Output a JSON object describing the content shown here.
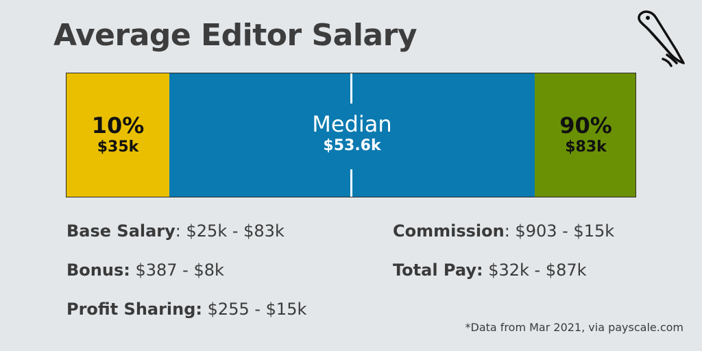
{
  "title": "Average Editor Salary",
  "colors": {
    "p10": "#e9bf00",
    "median": "#0b7ab0",
    "p90": "#6a9104",
    "background": "#e3e7ea"
  },
  "logo_icon": "bird-feather-icon",
  "chart_data": {
    "type": "bar",
    "orientation": "horizontal-range",
    "unit": "USD thousands",
    "segments": [
      {
        "label": "10%",
        "value_label": "$35k",
        "value": 35
      },
      {
        "label": "Median",
        "value_label": "$53.6k",
        "value": 53.6
      },
      {
        "label": "90%",
        "value_label": "$83k",
        "value": 83
      }
    ]
  },
  "stats": {
    "base_salary": {
      "label": "Base Salary",
      "value": ": $25k - $83k"
    },
    "bonus": {
      "label": "Bonus:",
      "value": " $387 - $8k"
    },
    "profit_sharing": {
      "label": "Profit Sharing:",
      "value": " $255 - $15k"
    },
    "commission": {
      "label": "Commission",
      "value": ": $903 - $15k"
    },
    "total_pay": {
      "label": "Total Pay:",
      "value": " $32k - $87k"
    }
  },
  "footnote": "*Data from Mar 2021, via payscale.com"
}
